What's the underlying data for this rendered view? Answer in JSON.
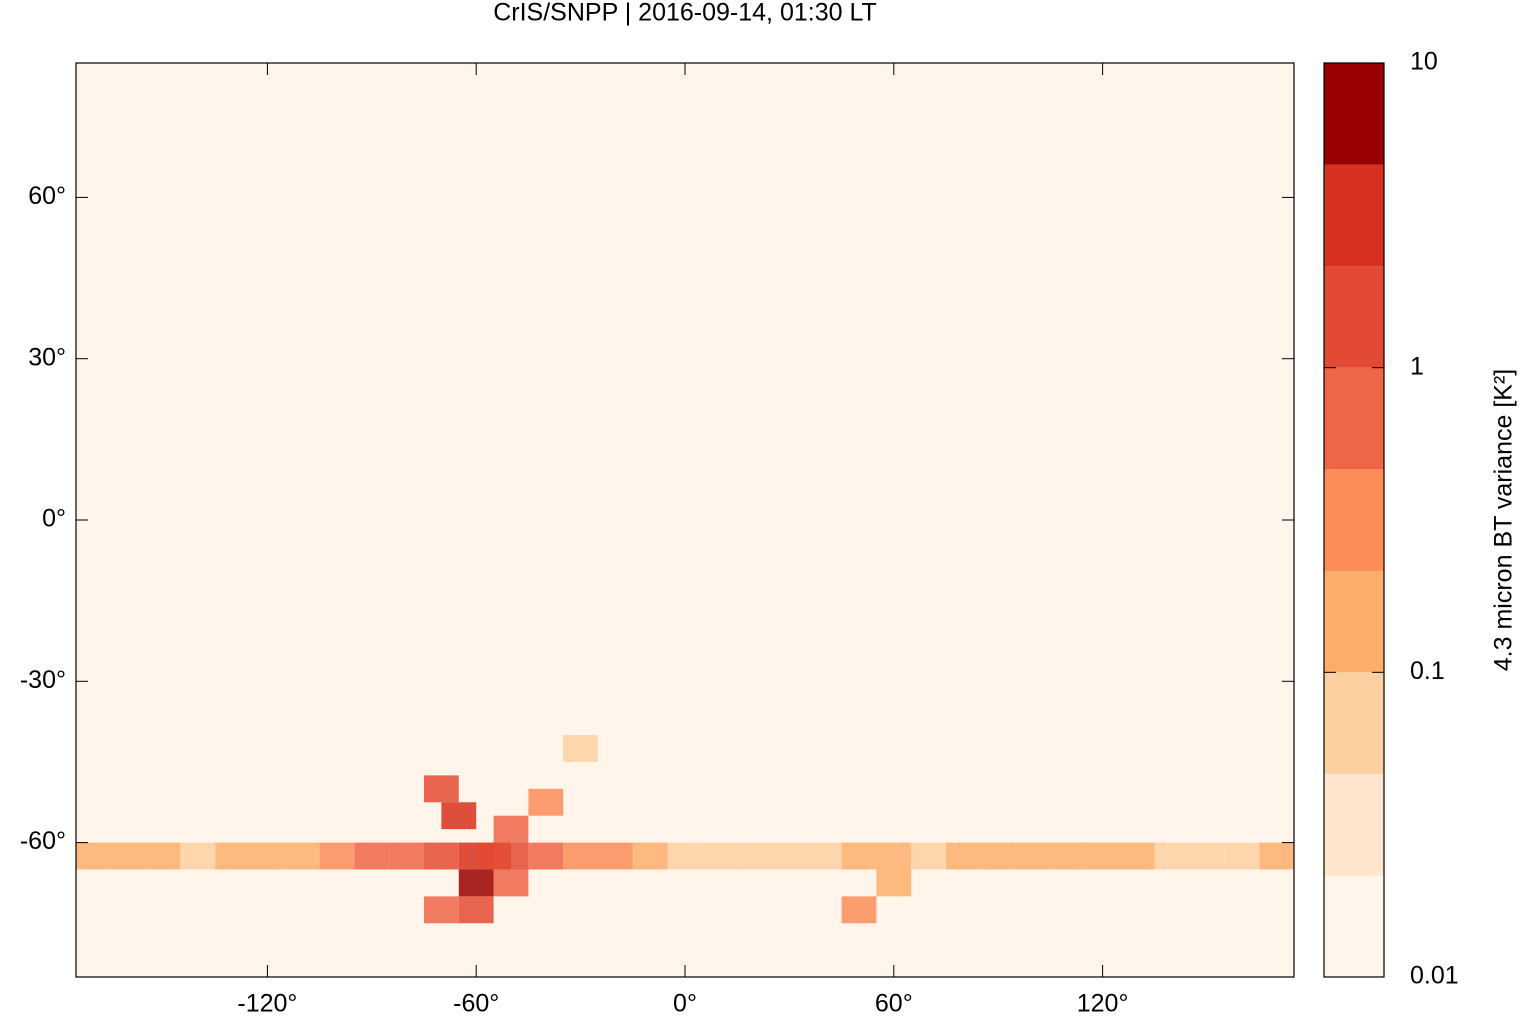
{
  "chart_data": {
    "type": "heatmap-map",
    "title": "CrIS/SNPP | 2016-09-14, 01:30 LT",
    "colorbar_label": "4.3 micron BT variance [K²]",
    "xlim": [
      -175,
      175
    ],
    "ylim": [
      -85,
      85
    ],
    "xticks": [
      {
        "value": -120,
        "label": "-120°"
      },
      {
        "value": -60,
        "label": "-60°"
      },
      {
        "value": 0,
        "label": "0°"
      },
      {
        "value": 60,
        "label": "60°"
      },
      {
        "value": 120,
        "label": "120°"
      }
    ],
    "yticks": [
      {
        "value": -60,
        "label": "-60°"
      },
      {
        "value": -30,
        "label": "-30°"
      },
      {
        "value": 0,
        "label": "0°"
      },
      {
        "value": 30,
        "label": "30°"
      },
      {
        "value": 60,
        "label": "60°"
      }
    ],
    "colorbar_lim": [
      0.01,
      10
    ],
    "colorbar_log": true,
    "colorbar_ticks": [
      0.01,
      0.1,
      1,
      10
    ],
    "levels": [
      0.01,
      0.0215,
      0.0464,
      0.1,
      0.215,
      0.464,
      1,
      2.15,
      4.64,
      10
    ],
    "colors": [
      "#fff5eb",
      "#fee6ce",
      "#fdd0a2",
      "#fdae6b",
      "#fc8d59",
      "#ef6548",
      "#e34a33",
      "#d7301f",
      "#990000"
    ],
    "lon": [
      -170,
      -160,
      -150,
      -140,
      -130,
      -120,
      -110,
      -100,
      -90,
      -80,
      -70,
      -60,
      -50,
      -40,
      -30,
      -20,
      -10,
      0,
      10,
      20,
      30,
      40,
      50,
      60,
      70,
      80,
      90,
      100,
      110,
      120,
      130,
      140,
      150,
      160,
      170,
      -70,
      -65,
      -60,
      -55,
      -50,
      -40,
      -30,
      50,
      60,
      -60,
      -70,
      -50
    ],
    "lat": [
      -62.5,
      -62.5,
      -62.5,
      -62.5,
      -62.5,
      -62.5,
      -62.5,
      -62.5,
      -62.5,
      -62.5,
      -62.5,
      -62.5,
      -62.5,
      -62.5,
      -62.5,
      -62.5,
      -62.5,
      -62.5,
      -62.5,
      -62.5,
      -62.5,
      -62.5,
      -62.5,
      -62.5,
      -62.5,
      -62.5,
      -62.5,
      -62.5,
      -62.5,
      -62.5,
      -62.5,
      -62.5,
      -62.5,
      -62.5,
      -62.5,
      -50,
      -55,
      -67.5,
      -62.5,
      -57.5,
      -52.5,
      -42.5,
      -72.5,
      -67.5,
      -72.5,
      -72.5,
      -67.5
    ],
    "values": [
      0.1,
      0.15,
      0.12,
      0.08,
      0.1,
      0.12,
      0.2,
      0.3,
      0.5,
      0.6,
      1.2,
      2.5,
      1.5,
      0.6,
      0.4,
      0.3,
      0.2,
      0.08,
      0.05,
      0.05,
      0.05,
      0.06,
      0.12,
      0.1,
      0.08,
      0.1,
      0.12,
      0.1,
      0.15,
      0.12,
      0.1,
      0.08,
      0.06,
      0.05,
      0.1,
      1.2,
      2.5,
      6,
      1.8,
      0.6,
      0.3,
      0.05,
      0.3,
      0.12,
      2,
      0.6,
      0.8
    ]
  }
}
